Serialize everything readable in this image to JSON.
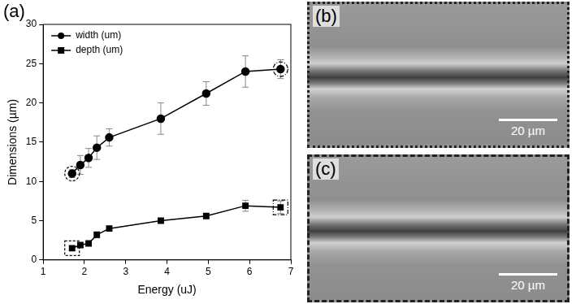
{
  "chart_data": {
    "type": "line",
    "x_label": "Energy (uJ)",
    "y_label": "Dimensions (µm)",
    "annotations": [
      {
        "text": "(a)"
      }
    ],
    "x": [
      1.7,
      1.9,
      2.1,
      2.3,
      2.6,
      3.85,
      4.95,
      5.9,
      6.75
    ],
    "xlim": [
      1,
      7
    ],
    "xticks": [
      1,
      2,
      3,
      4,
      5,
      6,
      7
    ],
    "ylim": [
      0,
      30
    ],
    "yticks": [
      0,
      5,
      10,
      15,
      20,
      25,
      30
    ],
    "grid": false,
    "legend": "upper left",
    "series": [
      {
        "name": "width (um)",
        "color": "#000000",
        "marker": "circle",
        "line_style": "solid",
        "values": [
          11.0,
          12.1,
          13.0,
          14.3,
          15.6,
          18.0,
          21.2,
          24.0,
          24.3
        ],
        "errors": [
          0.5,
          1.2,
          1.2,
          1.5,
          1.1,
          2.0,
          1.5,
          2.0,
          1.2
        ]
      },
      {
        "name": "depth (um)",
        "color": "#000000",
        "marker": "square",
        "line_style": "solid",
        "values": [
          1.5,
          1.9,
          2.1,
          3.2,
          4.0,
          5.0,
          5.6,
          6.9,
          6.7
        ],
        "errors": [
          0.3,
          0.3,
          0.3,
          0.4,
          0.3,
          0.3,
          0.3,
          0.7,
          0.8
        ]
      }
    ]
  },
  "panels": [
    {
      "label": "(b)",
      "scale_bar": "20 µm"
    },
    {
      "label": "(c)",
      "scale_bar": "20 µm"
    }
  ]
}
